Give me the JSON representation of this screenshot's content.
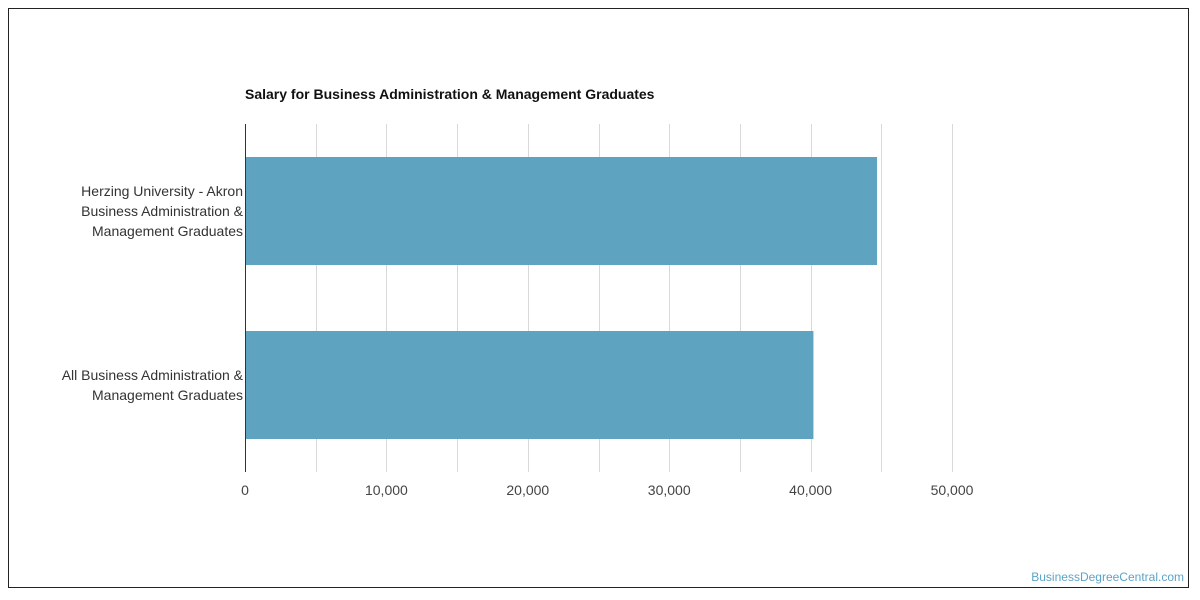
{
  "chart_data": {
    "type": "bar",
    "orientation": "horizontal",
    "title": "Salary for Business Administration & Management Graduates",
    "categories": [
      [
        "Herzing University - Akron",
        "Business Administration &",
        "Management Graduates"
      ],
      [
        "All Business Administration &",
        "Management Graduates"
      ]
    ],
    "values": [
      44700,
      40200
    ],
    "xlim": [
      0,
      50000
    ],
    "ticks": [
      0,
      10000,
      20000,
      30000,
      40000,
      50000
    ],
    "tick_labels": [
      "0",
      "10,000",
      "20,000",
      "30,000",
      "40,000",
      "50,000"
    ],
    "grid": true,
    "bar_color": "#5ea3bf",
    "grid_color": "#d9d9d9"
  },
  "footer": {
    "watermark": "BusinessDegreeCentral.com"
  }
}
